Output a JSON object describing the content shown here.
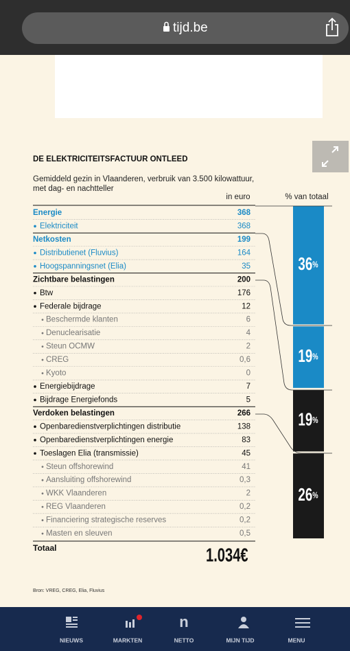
{
  "browser": {
    "url": "tijd.be"
  },
  "table": {
    "title": "DE ELEKTRICITEITSFACTUUR ONTLEED",
    "subtitle": [
      "Gemiddeld gezin in Vlaanderen, verbruik van 3.500 kilowattuur,",
      "met dag- en nachtteller"
    ],
    "columns": [
      "in euro",
      "% van totaal"
    ],
    "rows": [
      {
        "label": "Energie",
        "value": "368",
        "kind": "section",
        "color": "#1a8ac6"
      },
      {
        "label": "Elektriciteit",
        "value": "368",
        "kind": "item",
        "color": "#1a8ac6"
      },
      {
        "label": "Netkosten",
        "value": "199",
        "kind": "section",
        "color": "#1a8ac6"
      },
      {
        "label": "Distributienet (Fluvius)",
        "value": "164",
        "kind": "item",
        "color": "#1a8ac6"
      },
      {
        "label": "Hoogspanningsnet (Elia)",
        "value": "35",
        "kind": "item",
        "color": "#1a8ac6"
      },
      {
        "label": "Zichtbare belastingen",
        "value": "200",
        "kind": "section",
        "color": "#111111"
      },
      {
        "label": "Btw",
        "value": "176",
        "kind": "item",
        "color": "#111111"
      },
      {
        "label": "Federale bijdrage",
        "value": "12",
        "kind": "item",
        "color": "#111111"
      },
      {
        "label": "Beschermde klanten",
        "value": "6",
        "kind": "sub",
        "color": "#777777"
      },
      {
        "label": "Denuclearisatie",
        "value": "4",
        "kind": "sub",
        "color": "#777777"
      },
      {
        "label": "Steun OCMW",
        "value": "2",
        "kind": "sub",
        "color": "#777777"
      },
      {
        "label": "CREG",
        "value": "0,6",
        "kind": "sub",
        "color": "#777777"
      },
      {
        "label": "Kyoto",
        "value": "0",
        "kind": "sub",
        "color": "#777777"
      },
      {
        "label": "Energiebijdrage",
        "value": "7",
        "kind": "item",
        "color": "#111111"
      },
      {
        "label": "Bijdrage Energiefonds",
        "value": "5",
        "kind": "item",
        "color": "#111111"
      },
      {
        "label": "Verdoken belastingen",
        "value": "266",
        "kind": "section",
        "color": "#111111"
      },
      {
        "label": "Openbaredienstverplichtingen distributie",
        "value": "138",
        "kind": "item",
        "color": "#111111"
      },
      {
        "label": "Openbaredienstverplichtingen energie",
        "value": "83",
        "kind": "item",
        "color": "#111111"
      },
      {
        "label": "Toeslagen Elia (transmissie)",
        "value": "45",
        "kind": "item",
        "color": "#111111"
      },
      {
        "label": "Steun offshorewind",
        "value": "41",
        "kind": "sub",
        "color": "#777777"
      },
      {
        "label": "Aansluiting offshorewind",
        "value": "0,3",
        "kind": "sub",
        "color": "#777777"
      },
      {
        "label": "WKK Vlaanderen",
        "value": "2",
        "kind": "sub",
        "color": "#777777"
      },
      {
        "label": "REG Vlaanderen",
        "value": "0,2",
        "kind": "sub",
        "color": "#777777"
      },
      {
        "label": "Financiering strategische reserves",
        "value": "0,2",
        "kind": "sub",
        "color": "#777777"
      },
      {
        "label": "Masten en sleuven",
        "value": "0,5",
        "kind": "sub",
        "color": "#777777"
      }
    ],
    "shares": {
      "unit": "%",
      "segments": [
        {
          "value": 36,
          "color": "#1a8ac6"
        },
        {
          "value": 19,
          "color": "#1a8ac6"
        },
        {
          "value": 19,
          "color": "#1a1a1a"
        },
        {
          "value": 26,
          "color": "#1a1a1a"
        }
      ]
    },
    "total": {
      "label": "Totaal",
      "value": "1.034€"
    },
    "source": "Bron: VREG, CREG, Elia, Fluvius"
  },
  "nav": [
    "NIEUWS",
    "MARKTEN",
    "NETTO",
    "MIJN TIJD",
    "MENU"
  ]
}
